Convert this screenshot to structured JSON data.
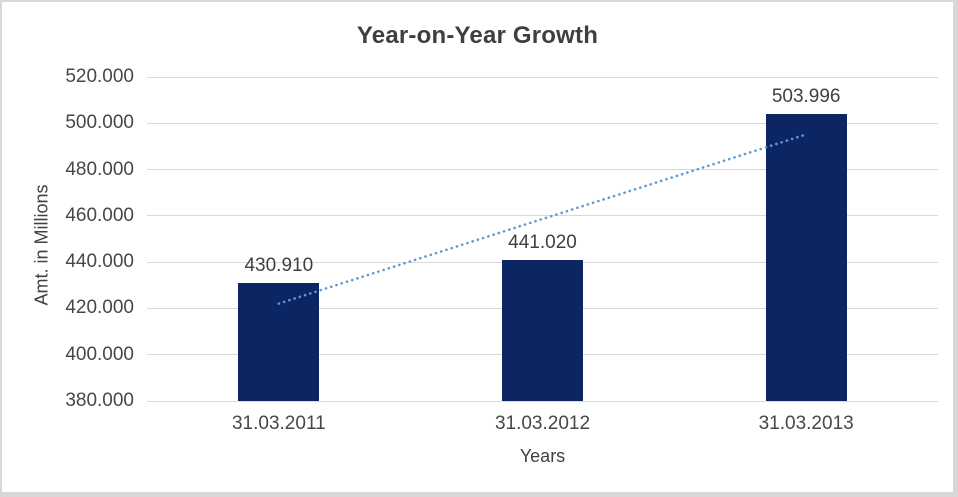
{
  "window": {
    "background": "#ffffff",
    "frame_border_color": "#d8d8d8"
  },
  "chart_data": {
    "type": "bar",
    "title": "Year-on-Year Growth",
    "xlabel": "Years",
    "ylabel": "Amt. in Millions",
    "categories": [
      "31.03.2011",
      "31.03.2012",
      "31.03.2013"
    ],
    "values": [
      430.91,
      441.02,
      503.996
    ],
    "data_labels": [
      "430.910",
      "441.020",
      "503.996"
    ],
    "ylim": [
      380,
      520
    ],
    "ytick_step": 20,
    "ytick_labels": [
      "520.000",
      "500.000",
      "480.000",
      "460.000",
      "440.000",
      "420.000",
      "400.000",
      "380.000"
    ],
    "grid": true,
    "legend": "none",
    "bar_color": "#0c2563",
    "gridline_color": "#d9d9d9",
    "title_color": "#3f3f3f",
    "text_color": "#404040",
    "tick_color": "#474747",
    "trendline": {
      "type": "linear",
      "style": "dotted",
      "color": "#5b9bd5",
      "start_value": 422.1,
      "end_value": 495.2
    }
  }
}
